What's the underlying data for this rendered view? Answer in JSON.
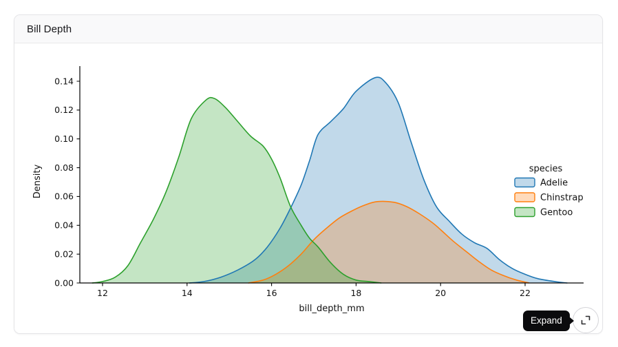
{
  "card": {
    "title": "Bill Depth"
  },
  "tooltip": {
    "label": "Expand"
  },
  "expand_button": {
    "icon": "expand-icon"
  },
  "chart_data": {
    "type": "area",
    "subtype": "kde-density",
    "title": "Bill Depth",
    "xlabel": "bill_depth_mm",
    "ylabel": "Density",
    "xlim": [
      11.45,
      23.4
    ],
    "ylim": [
      0,
      0.1475
    ],
    "grid": false,
    "legend_title": "species",
    "legend_position": "right",
    "x_axis": {
      "label": "bill_depth_mm",
      "ticks": [
        {
          "v": 12,
          "label": "12"
        },
        {
          "v": 14,
          "label": "14"
        },
        {
          "v": 16,
          "label": "16"
        },
        {
          "v": 18,
          "label": "18"
        },
        {
          "v": 20,
          "label": "20"
        },
        {
          "v": 22,
          "label": "22"
        }
      ]
    },
    "y_axis": {
      "label": "Density",
      "ticks": [
        {
          "v": 0.0,
          "label": "0.00"
        },
        {
          "v": 0.02,
          "label": "0.02"
        },
        {
          "v": 0.04,
          "label": "0.04"
        },
        {
          "v": 0.06,
          "label": "0.06"
        },
        {
          "v": 0.08,
          "label": "0.08"
        },
        {
          "v": 0.1,
          "label": "0.10"
        },
        {
          "v": 0.12,
          "label": "0.12"
        },
        {
          "v": 0.14,
          "label": "0.14"
        }
      ]
    },
    "series": [
      {
        "name": "Adelie",
        "color": "#1f77b4",
        "fill_opacity": 0.28,
        "peak": {
          "x": 18.45,
          "density": 0.1425
        },
        "points": [
          [
            14.05,
            0
          ],
          [
            14.4,
            0.001
          ],
          [
            14.8,
            0.004
          ],
          [
            15.2,
            0.009
          ],
          [
            15.6,
            0.016
          ],
          [
            15.9,
            0.025
          ],
          [
            16.2,
            0.038
          ],
          [
            16.45,
            0.052
          ],
          [
            16.7,
            0.068
          ],
          [
            16.9,
            0.085
          ],
          [
            17.1,
            0.103
          ],
          [
            17.4,
            0.112
          ],
          [
            17.7,
            0.121
          ],
          [
            18.0,
            0.133
          ],
          [
            18.45,
            0.1425
          ],
          [
            18.7,
            0.139
          ],
          [
            19.0,
            0.125
          ],
          [
            19.3,
            0.098
          ],
          [
            19.6,
            0.072
          ],
          [
            19.9,
            0.053
          ],
          [
            20.2,
            0.043
          ],
          [
            20.5,
            0.034
          ],
          [
            20.8,
            0.028
          ],
          [
            21.1,
            0.024
          ],
          [
            21.4,
            0.016
          ],
          [
            21.7,
            0.01
          ],
          [
            22.0,
            0.006
          ],
          [
            22.3,
            0.003
          ],
          [
            22.7,
            0.001
          ],
          [
            23.0,
            0
          ]
        ]
      },
      {
        "name": "Chinstrap",
        "color": "#ff7f0e",
        "fill_opacity": 0.28,
        "peak": {
          "x": 18.5,
          "density": 0.0565
        },
        "points": [
          [
            15.45,
            0
          ],
          [
            15.8,
            0.002
          ],
          [
            16.1,
            0.006
          ],
          [
            16.4,
            0.012
          ],
          [
            16.7,
            0.02
          ],
          [
            17.0,
            0.03
          ],
          [
            17.3,
            0.038
          ],
          [
            17.6,
            0.045
          ],
          [
            17.9,
            0.05
          ],
          [
            18.2,
            0.054
          ],
          [
            18.5,
            0.0565
          ],
          [
            18.9,
            0.056
          ],
          [
            19.2,
            0.053
          ],
          [
            19.5,
            0.048
          ],
          [
            19.8,
            0.042
          ],
          [
            20.0,
            0.037
          ],
          [
            20.3,
            0.029
          ],
          [
            20.6,
            0.022
          ],
          [
            20.9,
            0.015
          ],
          [
            21.2,
            0.009
          ],
          [
            21.5,
            0.005
          ],
          [
            21.8,
            0.002
          ],
          [
            22.1,
            0
          ]
        ]
      },
      {
        "name": "Gentoo",
        "color": "#2ca02c",
        "fill_opacity": 0.28,
        "peak": {
          "x": 14.55,
          "density": 0.128
        },
        "points": [
          [
            11.75,
            0
          ],
          [
            12.0,
            0.001
          ],
          [
            12.3,
            0.004
          ],
          [
            12.6,
            0.012
          ],
          [
            12.9,
            0.028
          ],
          [
            13.2,
            0.044
          ],
          [
            13.5,
            0.063
          ],
          [
            13.8,
            0.087
          ],
          [
            14.1,
            0.114
          ],
          [
            14.45,
            0.127
          ],
          [
            14.65,
            0.128
          ],
          [
            14.9,
            0.122
          ],
          [
            15.2,
            0.112
          ],
          [
            15.5,
            0.102
          ],
          [
            15.8,
            0.095
          ],
          [
            16.0,
            0.086
          ],
          [
            16.2,
            0.073
          ],
          [
            16.45,
            0.053
          ],
          [
            16.7,
            0.04
          ],
          [
            16.9,
            0.031
          ],
          [
            17.1,
            0.025
          ],
          [
            17.4,
            0.014
          ],
          [
            17.7,
            0.006
          ],
          [
            18.0,
            0.002
          ],
          [
            18.3,
            0.001
          ],
          [
            18.6,
            0
          ]
        ]
      }
    ]
  }
}
